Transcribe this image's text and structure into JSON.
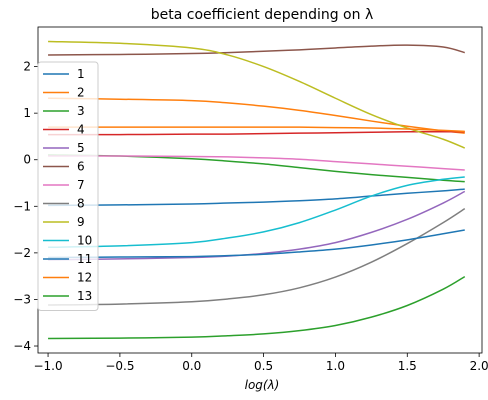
{
  "chart_data": {
    "type": "line",
    "title": "beta coefficient depending on λ",
    "xlabel": "log(λ)",
    "ylabel": "",
    "xlim": [
      -1.07,
      2.02
    ],
    "ylim": [
      -4.15,
      2.85
    ],
    "x_ticks": [
      -1.0,
      -0.5,
      0.0,
      0.5,
      1.0,
      1.5,
      2.0
    ],
    "x_tick_labels": [
      "−1.0",
      "−0.5",
      "0.0",
      "0.5",
      "1.0",
      "1.5",
      "2.0"
    ],
    "y_ticks": [
      -4,
      -3,
      -2,
      -1,
      0,
      1,
      2
    ],
    "y_tick_labels": [
      "−4",
      "−3",
      "−2",
      "−1",
      "0",
      "1",
      "2"
    ],
    "grid": false,
    "legend_position": "upper-left",
    "x": [
      -1.0,
      -0.5,
      0.0,
      0.25,
      0.5,
      0.75,
      1.0,
      1.25,
      1.5,
      1.75,
      1.9
    ],
    "series": [
      {
        "name": "1",
        "color": "#1f77b4",
        "values": [
          -0.98,
          -0.97,
          -0.95,
          -0.93,
          -0.91,
          -0.88,
          -0.84,
          -0.78,
          -0.72,
          -0.67,
          -0.63
        ]
      },
      {
        "name": "2",
        "color": "#ff7f0e",
        "values": [
          1.32,
          1.3,
          1.27,
          1.22,
          1.15,
          1.06,
          0.95,
          0.83,
          0.72,
          0.62,
          0.57
        ]
      },
      {
        "name": "3",
        "color": "#2ca02c",
        "values": [
          0.1,
          0.08,
          0.02,
          -0.03,
          -0.09,
          -0.17,
          -0.25,
          -0.32,
          -0.38,
          -0.44,
          -0.47
        ]
      },
      {
        "name": "4",
        "color": "#d62728",
        "values": [
          0.54,
          0.54,
          0.55,
          0.55,
          0.56,
          0.57,
          0.58,
          0.59,
          0.6,
          0.6,
          0.6
        ]
      },
      {
        "name": "5",
        "color": "#9467bd",
        "values": [
          -2.15,
          -2.13,
          -2.1,
          -2.07,
          -2.01,
          -1.92,
          -1.78,
          -1.56,
          -1.28,
          -0.93,
          -0.68
        ]
      },
      {
        "name": "6",
        "color": "#8c564b",
        "values": [
          2.25,
          2.26,
          2.28,
          2.3,
          2.33,
          2.36,
          2.4,
          2.44,
          2.46,
          2.42,
          2.3
        ]
      },
      {
        "name": "7",
        "color": "#e377c2",
        "values": [
          0.08,
          0.08,
          0.07,
          0.06,
          0.04,
          0.01,
          -0.04,
          -0.09,
          -0.14,
          -0.19,
          -0.22
        ]
      },
      {
        "name": "8",
        "color": "#7f7f7f",
        "values": [
          -3.12,
          -3.1,
          -3.05,
          -2.99,
          -2.9,
          -2.75,
          -2.52,
          -2.2,
          -1.8,
          -1.35,
          -1.05
        ]
      },
      {
        "name": "9",
        "color": "#bcbd22",
        "values": [
          2.54,
          2.5,
          2.4,
          2.25,
          2.0,
          1.68,
          1.32,
          0.97,
          0.68,
          0.44,
          0.25
        ]
      },
      {
        "name": "10",
        "color": "#17becf",
        "values": [
          -1.88,
          -1.85,
          -1.78,
          -1.68,
          -1.55,
          -1.35,
          -1.08,
          -0.78,
          -0.55,
          -0.42,
          -0.37
        ]
      },
      {
        "name": "11",
        "color": "#1f77b4",
        "values": [
          -2.1,
          -2.09,
          -2.08,
          -2.06,
          -2.03,
          -1.98,
          -1.92,
          -1.83,
          -1.72,
          -1.59,
          -1.51
        ]
      },
      {
        "name": "12",
        "color": "#ff7f0e",
        "values": [
          0.7,
          0.7,
          0.7,
          0.7,
          0.7,
          0.7,
          0.69,
          0.68,
          0.66,
          0.63,
          0.61
        ]
      },
      {
        "name": "13",
        "color": "#2ca02c",
        "values": [
          -3.84,
          -3.83,
          -3.81,
          -3.78,
          -3.74,
          -3.67,
          -3.56,
          -3.38,
          -3.13,
          -2.78,
          -2.51
        ]
      }
    ]
  }
}
